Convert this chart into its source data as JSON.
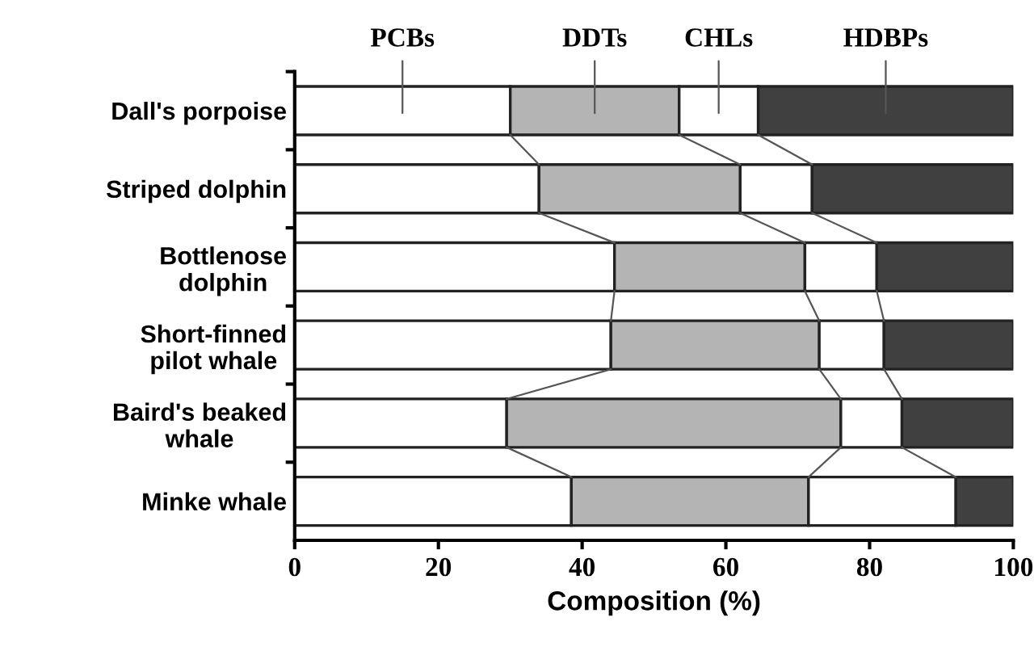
{
  "chart_data": {
    "type": "bar",
    "orientation": "horizontal",
    "stacked": true,
    "categories": [
      "Dall's porpoise",
      "Striped dolphin",
      "Bottlenose\ndolphin",
      "Short-finned\npilot whale",
      "Baird's beaked\nwhale",
      "Minke whale"
    ],
    "series": [
      {
        "name": "PCBs",
        "color": "#ffffff",
        "values": [
          30,
          34,
          44.5,
          44,
          29.5,
          38.5
        ]
      },
      {
        "name": "DDTs",
        "color": "#b4b4b4",
        "values": [
          23.5,
          28,
          26.5,
          29,
          46.5,
          33
        ]
      },
      {
        "name": "CHLs",
        "color": "#ffffff",
        "values": [
          11,
          10,
          10,
          9,
          8.5,
          20.5
        ]
      },
      {
        "name": "HDBPs",
        "color": "#404040",
        "values": [
          35.5,
          28,
          19,
          18,
          15.5,
          8
        ]
      }
    ],
    "xlim": [
      0,
      100
    ],
    "xticks": [
      0,
      20,
      40,
      60,
      80,
      100
    ],
    "xlabel": "Composition (%)",
    "grid": false,
    "legend": false
  }
}
